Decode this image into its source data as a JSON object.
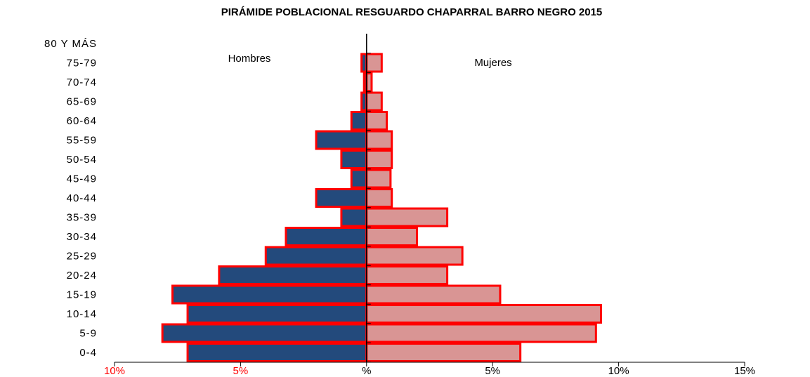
{
  "chart_data": {
    "type": "pyramid",
    "title": "PIRÁMIDE POBLACIONAL RESGUARDO CHAPARRAL BARRO NEGRO 2015",
    "categories": [
      "0-4",
      "5-9",
      "10-14",
      "15-19",
      "20-24",
      "25-29",
      "30-34",
      "35-39",
      "40-44",
      "45-49",
      "50-54",
      "55-59",
      "60-64",
      "65-69",
      "70-74",
      "75-79",
      "80 Y MÁS"
    ],
    "series": [
      {
        "name": "Hombres",
        "color": "#234a7c",
        "edge": "#ff0000",
        "values": [
          -7.1,
          -8.1,
          -7.1,
          -7.7,
          -5.85,
          -4.0,
          -3.2,
          -1.0,
          -2.0,
          -0.6,
          -1.0,
          -2.0,
          -0.6,
          -0.2,
          -0.1,
          -0.2,
          0
        ]
      },
      {
        "name": "Mujeres",
        "color": "#d99594",
        "edge": "#ff0000",
        "values": [
          6.1,
          9.1,
          9.3,
          5.3,
          3.2,
          3.8,
          2.0,
          3.2,
          1.0,
          0.95,
          1.0,
          1.0,
          0.8,
          0.6,
          0.2,
          0.6,
          0
        ]
      }
    ],
    "xlim": [
      -10,
      15
    ],
    "xticks": [
      {
        "value": -10,
        "label": "10%"
      },
      {
        "value": -5,
        "label": "5%"
      },
      {
        "value": 0,
        "label": "%"
      },
      {
        "value": 5,
        "label": "5%"
      },
      {
        "value": 10,
        "label": "10%"
      },
      {
        "value": 15,
        "label": "15%"
      }
    ],
    "negative_tick_color": "#ff0000"
  }
}
